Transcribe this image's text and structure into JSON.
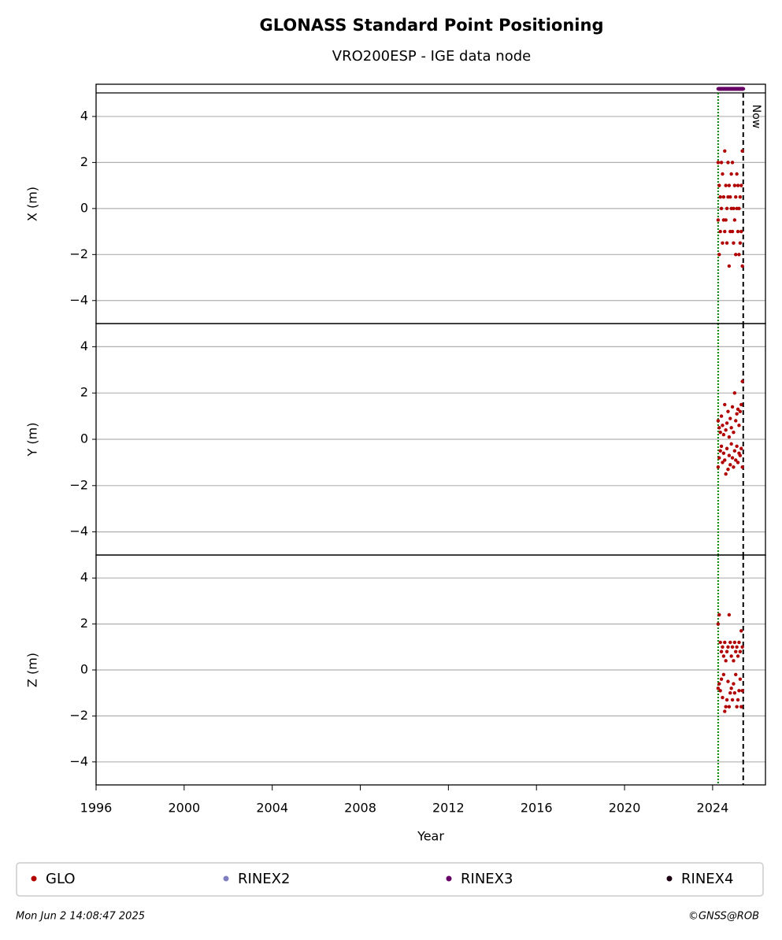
{
  "title": "GLONASS Standard Point Positioning",
  "subtitle": "VRO200ESP - IGE data node",
  "timestamp": "Mon Jun  2 14:08:47 2025",
  "credit": "©GNSS@ROB",
  "legend": [
    {
      "name": "GLO",
      "color": "#b00000"
    },
    {
      "name": "RINEX2",
      "color": "#8080c0"
    },
    {
      "name": "RINEX3",
      "color": "#660066"
    },
    {
      "name": "RINEX4",
      "color": "#1a0010"
    }
  ],
  "markers": [
    {
      "x": 2024.25,
      "color": "#008000",
      "style": "dotted"
    },
    {
      "x": 2025.39,
      "color": "#000000",
      "style": "dashed",
      "label": "Now"
    }
  ],
  "chart_data": [
    {
      "type": "scatter",
      "ylabel": "X (m)",
      "ylim": [
        -5,
        5.4
      ],
      "yticks": [
        -4,
        -2,
        0,
        2,
        4
      ],
      "xlim": [
        1996,
        2026.4
      ],
      "grid": true,
      "series": [
        {
          "name": "GLO",
          "color": "#b00000",
          "x": [
            2024.25,
            2024.25,
            2024.3,
            2024.3,
            2024.35,
            2024.35,
            2024.4,
            2024.4,
            2024.45,
            2024.45,
            2024.5,
            2024.5,
            2024.55,
            2024.55,
            2024.6,
            2024.6,
            2024.65,
            2024.65,
            2024.7,
            2024.7,
            2024.75,
            2024.75,
            2024.8,
            2024.8,
            2024.85,
            2024.85,
            2024.9,
            2024.9,
            2024.95,
            2024.95,
            2025.0,
            2025.0,
            2025.05,
            2025.05,
            2025.1,
            2025.1,
            2025.15,
            2025.15,
            2025.2,
            2025.2,
            2025.25,
            2025.25,
            2025.3,
            2025.3,
            2025.35,
            2025.35
          ],
          "values": [
            2,
            -0.5,
            1,
            -2,
            0.5,
            -1,
            2,
            0,
            1.5,
            -1.5,
            0.5,
            -0.5,
            2.5,
            -1,
            1,
            -0.5,
            0,
            -1.5,
            2,
            0.5,
            1,
            -2.5,
            0.5,
            -1,
            1.5,
            0,
            2,
            -1,
            0,
            -1.5,
            1,
            -0.5,
            0.5,
            -2,
            1.5,
            0,
            1,
            -1,
            0,
            -2,
            0.5,
            -1.5,
            1,
            -1,
            2.5,
            -2.5
          ]
        },
        {
          "name": "RINEX3",
          "color": "#660066",
          "x": [
            2024.25,
            2024.4,
            2024.55,
            2024.7,
            2024.85,
            2025.0,
            2025.15,
            2025.3,
            2025.4
          ],
          "values": [
            5.2,
            5.2,
            5.2,
            5.2,
            5.2,
            5.2,
            5.2,
            5.2,
            5.2
          ]
        }
      ]
    },
    {
      "type": "scatter",
      "ylabel": "Y (m)",
      "ylim": [
        -5,
        5
      ],
      "yticks": [
        -4,
        -2,
        0,
        2,
        4
      ],
      "xlim": [
        1996,
        2026.4
      ],
      "grid": true,
      "series": [
        {
          "name": "GLO",
          "color": "#b00000",
          "x": [
            2024.25,
            2024.25,
            2024.3,
            2024.3,
            2024.35,
            2024.35,
            2024.4,
            2024.4,
            2024.45,
            2024.45,
            2024.5,
            2024.5,
            2024.55,
            2024.55,
            2024.6,
            2024.6,
            2024.65,
            2024.65,
            2024.7,
            2024.7,
            2024.75,
            2024.75,
            2024.8,
            2024.8,
            2024.85,
            2024.85,
            2024.9,
            2024.9,
            2024.95,
            2024.95,
            2025.0,
            2025.0,
            2025.05,
            2025.05,
            2025.1,
            2025.1,
            2025.15,
            2025.15,
            2025.2,
            2025.2,
            2025.25,
            2025.25,
            2025.3,
            2025.3,
            2025.35,
            2025.35
          ],
          "values": [
            0.8,
            -1.2,
            0.5,
            -0.8,
            0.3,
            -0.5,
            1,
            -0.3,
            0.6,
            -1,
            0.2,
            -0.6,
            1.5,
            -0.9,
            0.4,
            -1.5,
            0.7,
            -0.4,
            1.2,
            -1.3,
            0.1,
            -0.7,
            0.9,
            -1.1,
            0.5,
            -0.2,
            1.4,
            -0.8,
            0.3,
            -1.2,
            2,
            -0.5,
            0.8,
            -0.9,
            1.1,
            -0.3,
            1.3,
            -1,
            0.6,
            -0.6,
            1.2,
            -0.7,
            1.5,
            -0.4,
            2.5,
            -1.2
          ]
        }
      ]
    },
    {
      "type": "scatter",
      "ylabel": "Z (m)",
      "xlabel": "Year",
      "ylim": [
        -5,
        5
      ],
      "yticks": [
        -4,
        -2,
        0,
        2,
        4
      ],
      "xlim": [
        1996,
        2026.4
      ],
      "xticks": [
        1996,
        2000,
        2004,
        2008,
        2012,
        2016,
        2020,
        2024
      ],
      "grid": true,
      "series": [
        {
          "name": "GLO",
          "color": "#b00000",
          "x": [
            2024.25,
            2024.25,
            2024.3,
            2024.3,
            2024.35,
            2024.35,
            2024.4,
            2024.4,
            2024.45,
            2024.45,
            2024.5,
            2024.5,
            2024.55,
            2024.55,
            2024.6,
            2024.6,
            2024.65,
            2024.65,
            2024.7,
            2024.7,
            2024.75,
            2024.75,
            2024.8,
            2024.8,
            2024.85,
            2024.85,
            2024.9,
            2024.9,
            2024.95,
            2024.95,
            2025.0,
            2025.0,
            2025.05,
            2025.05,
            2025.1,
            2025.1,
            2025.15,
            2025.15,
            2025.2,
            2025.2,
            2025.25,
            2025.25,
            2025.3,
            2025.3,
            2025.35,
            2025.35
          ],
          "values": [
            2,
            -0.8,
            2.4,
            -0.6,
            1.2,
            -0.9,
            0.8,
            -0.4,
            1,
            -1.2,
            0.6,
            -0.2,
            1.2,
            -1.8,
            0.4,
            -1.6,
            0.8,
            -1.3,
            1,
            -0.5,
            2.4,
            -1.6,
            1.2,
            -1,
            0.6,
            -0.8,
            1,
            -1.3,
            0.4,
            -0.6,
            1.2,
            -1,
            0.8,
            -0.2,
            1,
            -1.6,
            0.6,
            -1.3,
            1.2,
            -0.9,
            0.8,
            -0.4,
            1.7,
            -1.6,
            1,
            -0.9
          ]
        }
      ]
    }
  ]
}
